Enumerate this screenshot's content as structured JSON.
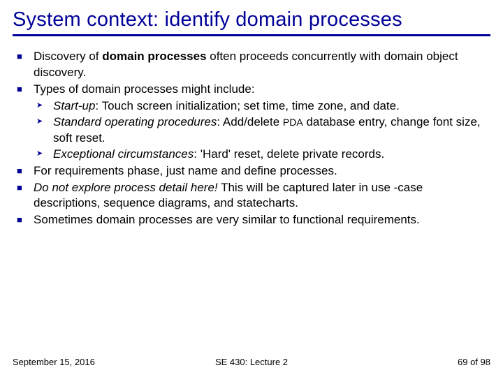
{
  "title": "System context: identify domain processes",
  "colors": {
    "accent": "#000099",
    "text": "#000000",
    "background": "#ffffff"
  },
  "bullets": {
    "b1_pre": "Discovery of ",
    "b1_bold": "domain processes",
    "b1_post": " often proceeds concurrently with domain object discovery.",
    "b2": "Types of domain processes might include:",
    "b2_s1_label": "Start-up",
    "b2_s1_text": ": Touch screen initialization; set time, time zone, and date.",
    "b2_s2_label": "Standard operating procedures",
    "b2_s2_text_pre": ": Add/delete ",
    "b2_s2_pda": "PDA",
    "b2_s2_text_post": " database entry, change font size, soft reset.",
    "b2_s3_label": "Exceptional circumstances",
    "b2_s3_text": ": 'Hard' reset, delete private records.",
    "b3": "For requirements phase, just name and define processes.",
    "b4_italic": "Do not explore process detail here!",
    "b4_rest": " This will be captured later in use -case descriptions, sequence diagrams, and statecharts.",
    "b5": "Sometimes domain processes are very similar to functional requirements."
  },
  "footer": {
    "date": "September 15, 2016",
    "center": "SE 430: Lecture 2",
    "page": "69 of 98"
  },
  "typography": {
    "title_fontsize": 29,
    "body_fontsize": 17,
    "footer_fontsize": 13
  }
}
